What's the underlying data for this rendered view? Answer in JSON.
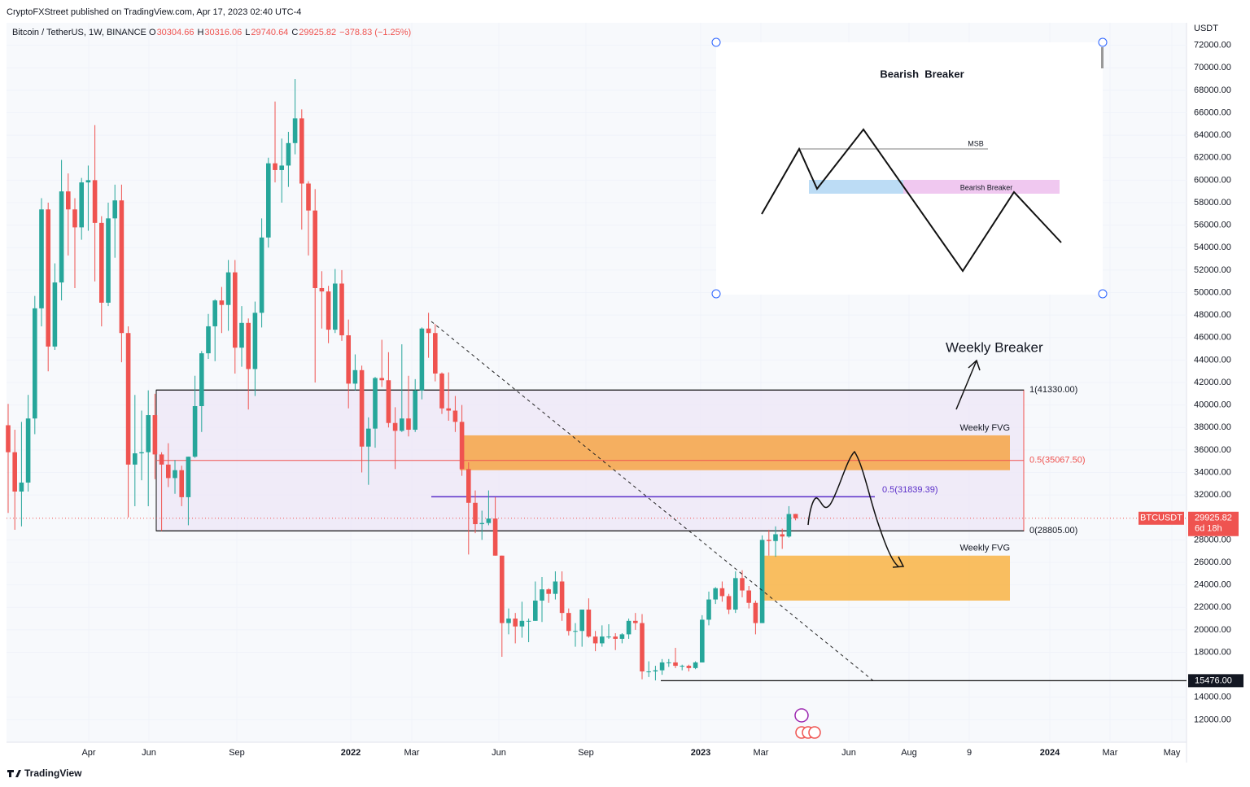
{
  "header": {
    "publisher": "CryptoFXStreet published on TradingView.com, Apr 17, 2023 02:40 UTC-4"
  },
  "footer": {
    "brand": "TradingView"
  },
  "chart_data": {
    "type": "candlestick",
    "symbol": "Bitcoin / TetherUS, 1W, BINANCE",
    "legend": [
      {
        "key": "O",
        "value": 30304.66
      },
      {
        "key": "H",
        "value": 30316.06
      },
      {
        "key": "L",
        "value": 29740.64
      },
      {
        "key": "C",
        "value": 29925.82
      }
    ],
    "change": "−378.83 (−1.25%)",
    "unit": "USDT",
    "xticks": [
      "Apr",
      "Jun",
      "Sep",
      "2022",
      "Mar",
      "Jun",
      "Sep",
      "2023",
      "Mar",
      "Jun",
      "Aug",
      "9",
      "2024",
      "Mar",
      "May"
    ],
    "ylim": [
      10000,
      74000
    ],
    "yticks": [
      {
        "value": 12000,
        "label": "12000.00"
      },
      {
        "value": 14000,
        "label": "14000.00"
      },
      {
        "value": 18000,
        "label": "18000.00"
      },
      {
        "value": 20000,
        "label": "20000.00"
      },
      {
        "value": 22000,
        "label": "22000.00"
      },
      {
        "value": 24000,
        "label": "24000.00"
      },
      {
        "value": 26000,
        "label": "26000.00"
      },
      {
        "value": 28000,
        "label": "28000.00"
      },
      {
        "value": 32000,
        "label": "32000.00"
      },
      {
        "value": 34000,
        "label": "34000.00"
      },
      {
        "value": 36000,
        "label": "36000.00"
      },
      {
        "value": 38000,
        "label": "38000.00"
      },
      {
        "value": 40000,
        "label": "40000.00"
      },
      {
        "value": 42000,
        "label": "42000.00"
      },
      {
        "value": 44000,
        "label": "44000.00"
      },
      {
        "value": 46000,
        "label": "46000.00"
      },
      {
        "value": 48000,
        "label": "48000.00"
      },
      {
        "value": 50000,
        "label": "50000.00"
      },
      {
        "value": 52000,
        "label": "52000.00"
      },
      {
        "value": 54000,
        "label": "54000.00"
      },
      {
        "value": 56000,
        "label": "56000.00"
      },
      {
        "value": 58000,
        "label": "58000.00"
      },
      {
        "value": 60000,
        "label": "60000.00"
      },
      {
        "value": 62000,
        "label": "62000.00"
      },
      {
        "value": 64000,
        "label": "64000.00"
      },
      {
        "value": 66000,
        "label": "66000.00"
      },
      {
        "value": 68000,
        "label": "68000.00"
      },
      {
        "value": 70000,
        "label": "70000.00"
      },
      {
        "value": 72000,
        "label": "72000.00"
      }
    ],
    "up_color": "#26a69a",
    "down_color": "#ef5350",
    "open": [
      38200,
      35800,
      32300,
      33100,
      38800,
      48600,
      57400,
      45200,
      50900,
      59000,
      57400,
      55800,
      59800,
      60000,
      56200,
      49100,
      56600,
      58200,
      46400,
      34700,
      35700,
      35800,
      39100,
      35600,
      34700,
      33500,
      34200,
      31800,
      35400,
      39900,
      44600,
      47000,
      49300,
      48900,
      51800,
      45100,
      47300,
      43200,
      48200,
      54900,
      61500,
      60900,
      61300,
      63300,
      65500,
      59700,
      57300,
      50400,
      50100,
      46700,
      50800,
      46200,
      41900,
      43100,
      36300,
      37900,
      42400,
      42200,
      38400,
      37700,
      38800,
      37800,
      41300,
      46800,
      46400,
      42800,
      39700,
      39500,
      38500,
      34300,
      31300,
      29400,
      29500,
      29900,
      26600,
      20600,
      21000,
      20300,
      20800,
      20800,
      22600,
      23600,
      23200,
      24300,
      21500,
      19900,
      19900,
      21800,
      19400,
      18800,
      19400,
      19400,
      19200,
      19600,
      20800,
      20600,
      16300,
      16300,
      16400,
      17100,
      17100,
      16800,
      16800,
      16600,
      17100,
      20900,
      22700,
      23700,
      23000,
      21800,
      24600,
      23500,
      22400,
      20600,
      28000,
      27900,
      28500,
      28300,
      30304.66
    ],
    "high": [
      40100,
      37800,
      38500,
      40900,
      49700,
      58400,
      58000,
      52600,
      61800,
      60600,
      58400,
      60200,
      61300,
      64900,
      56800,
      58000,
      59600,
      59600,
      47000,
      40900,
      39500,
      41300,
      41000,
      35800,
      36600,
      35100,
      34600,
      35400,
      42600,
      44800,
      48100,
      49400,
      50500,
      52900,
      52900,
      48800,
      47700,
      49200,
      56600,
      62000,
      67000,
      63700,
      64300,
      69000,
      66300,
      59900,
      59200,
      51900,
      50600,
      52100,
      52000,
      47600,
      44500,
      43500,
      38900,
      42500,
      45800,
      44700,
      39800,
      45400,
      42600,
      42300,
      46900,
      48200,
      47200,
      42900,
      42900,
      40800,
      40000,
      34900,
      32400,
      30600,
      32400,
      31800,
      26600,
      21900,
      21500,
      22500,
      21000,
      24300,
      24700,
      23700,
      25200,
      25200,
      21900,
      20600,
      21800,
      22800,
      19900,
      20400,
      20500,
      19700,
      19700,
      21000,
      21500,
      21400,
      17200,
      16800,
      17400,
      17400,
      18400,
      16900,
      16900,
      17200,
      21300,
      23400,
      23800,
      24300,
      23200,
      25200,
      25300,
      23900,
      22600,
      28400,
      28900,
      29200,
      29000,
      31000,
      30316.06
    ],
    "low": [
      30400,
      28900,
      29200,
      32300,
      37400,
      47000,
      43000,
      44900,
      49300,
      53300,
      50400,
      54700,
      55500,
      51000,
      47000,
      48800,
      53100,
      43800,
      30000,
      31000,
      33300,
      31000,
      33400,
      28800,
      32700,
      32100,
      31000,
      29300,
      35300,
      37600,
      44100,
      43900,
      46400,
      46600,
      42800,
      43400,
      39600,
      40800,
      46900,
      54000,
      59800,
      58000,
      59400,
      62300,
      55600,
      53300,
      42000,
      46800,
      45500,
      46400,
      45700,
      39700,
      41300,
      34000,
      32900,
      36200,
      41600,
      38000,
      34300,
      37600,
      37200,
      37600,
      40500,
      44200,
      42100,
      39200,
      38600,
      37600,
      33700,
      26700,
      28600,
      28000,
      29300,
      26600,
      17600,
      19600,
      18800,
      19300,
      18900,
      20800,
      20700,
      22400,
      22700,
      20800,
      19500,
      18500,
      18500,
      19300,
      18100,
      18500,
      19200,
      18200,
      18800,
      19200,
      20000,
      15600,
      15800,
      15500,
      16000,
      16700,
      16600,
      16400,
      16300,
      16500,
      17100,
      20400,
      22300,
      22500,
      21400,
      21500,
      22900,
      21900,
      19600,
      20600,
      26600,
      26500,
      27200,
      28200,
      29740.64
    ],
    "close": [
      35800,
      32300,
      33100,
      38800,
      48600,
      57400,
      45200,
      50900,
      59000,
      57400,
      55800,
      59800,
      60000,
      56200,
      49100,
      56600,
      58200,
      46400,
      34700,
      35700,
      35800,
      39100,
      35600,
      34700,
      33500,
      34200,
      31800,
      35400,
      39900,
      44600,
      47000,
      49300,
      48900,
      51800,
      45100,
      47300,
      43200,
      48200,
      54900,
      61500,
      60900,
      61300,
      63300,
      65500,
      59700,
      57300,
      50400,
      50100,
      46700,
      50800,
      46200,
      41900,
      43100,
      36300,
      37900,
      42400,
      42200,
      38400,
      37700,
      38800,
      37800,
      41300,
      46800,
      46400,
      42800,
      39700,
      39500,
      38500,
      34300,
      31300,
      29400,
      29500,
      29900,
      26600,
      20600,
      21000,
      20300,
      20800,
      20800,
      22600,
      23600,
      23200,
      24300,
      21500,
      19900,
      19900,
      21800,
      19400,
      18800,
      19400,
      19400,
      19200,
      19600,
      20800,
      20600,
      16300,
      16300,
      16400,
      17100,
      17100,
      16800,
      16800,
      16600,
      17100,
      20900,
      22700,
      23700,
      23000,
      21800,
      24600,
      23500,
      22400,
      20600,
      28000,
      27900,
      28500,
      28300,
      30300,
      29925.82
    ],
    "price_tag": {
      "symbol": "BTCUSDT",
      "countdown": "6d 18h"
    },
    "fib": [
      {
        "value": 41330,
        "label": "1(41330.00)"
      },
      {
        "value": 35067.5,
        "label": "0.5(35067.50)"
      },
      {
        "value": 28805,
        "label": "0(28805.00)"
      }
    ],
    "midline": {
      "value": 31839.39,
      "label": "0.5(31839.39)"
    },
    "support": {
      "value": 15476,
      "label": "15476.00"
    },
    "fvg": [
      {
        "name": "Weekly FVG",
        "low": 34200,
        "high": 37300
      },
      {
        "name": "Weekly FVG",
        "low": 22600,
        "high": 26600
      }
    ],
    "annotation": "Weekly Breaker"
  },
  "inset": {
    "title": "Bearish  Breaker",
    "msb": "MSB",
    "zone": "Bearish Breaker"
  }
}
